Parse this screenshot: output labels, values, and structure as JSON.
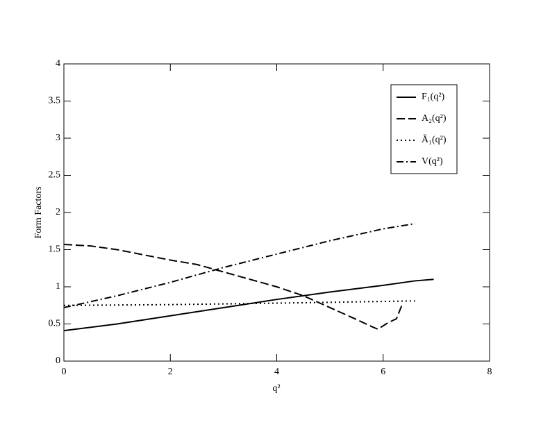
{
  "chart_data": {
    "type": "line",
    "xlabel": "q²",
    "ylabel": "Form Factors",
    "xlim": [
      0,
      8
    ],
    "xticks": [
      0,
      2,
      4,
      6,
      8
    ],
    "ylim": [
      0,
      4
    ],
    "yticks": [
      0,
      0.5,
      1,
      1.5,
      2,
      2.5,
      3,
      3.5,
      4
    ],
    "legend": "upper right",
    "series": [
      {
        "name": "F₁(q²)",
        "color": "#000000",
        "dash": "solid",
        "x": [
          0,
          1,
          2,
          3,
          4,
          5,
          6,
          6.6,
          6.95
        ],
        "values": [
          0.41,
          0.5,
          0.61,
          0.72,
          0.83,
          0.93,
          1.02,
          1.08,
          1.1
        ]
      },
      {
        "name": "A₂(q²)",
        "color": "#000000",
        "dash": "dashed",
        "x": [
          0,
          0.5,
          1,
          1.5,
          2,
          2.5,
          3,
          3.5,
          4,
          4.5,
          5,
          5.5,
          5.8,
          5.9,
          6.1,
          6.25,
          6.35
        ],
        "values": [
          1.57,
          1.55,
          1.5,
          1.43,
          1.36,
          1.3,
          1.2,
          1.1,
          1.0,
          0.88,
          0.72,
          0.56,
          0.46,
          0.43,
          0.52,
          0.57,
          0.75
        ]
      },
      {
        "name": "Ã₁(q²)",
        "color": "#000000",
        "dash": "dotted",
        "x": [
          0,
          2,
          4,
          6.6
        ],
        "values": [
          0.75,
          0.76,
          0.78,
          0.81
        ]
      },
      {
        "name": "V(q²)",
        "color": "#000000",
        "dash": "dashdot",
        "x": [
          0,
          0.5,
          1,
          1.5,
          2,
          2.5,
          3,
          3.5,
          4,
          4.5,
          5,
          5.5,
          6,
          6.6
        ],
        "values": [
          0.72,
          0.8,
          0.88,
          0.97,
          1.06,
          1.16,
          1.26,
          1.35,
          1.44,
          1.53,
          1.62,
          1.7,
          1.78,
          1.85
        ]
      }
    ]
  }
}
